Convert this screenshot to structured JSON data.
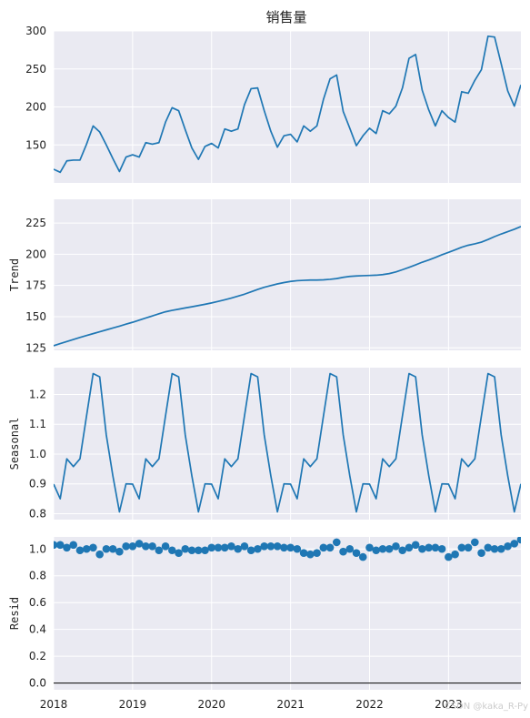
{
  "figure": {
    "watermark": "CSDN @kaka_R-Py"
  },
  "colors": {
    "line": "#1f77b4",
    "panel_bg": "#eaeaf2",
    "grid": "#ffffff",
    "baseline": "#000000"
  },
  "x_tick_labels": [
    "2018",
    "2019",
    "2020",
    "2021",
    "2022",
    "2023"
  ],
  "chart_data": [
    {
      "type": "line",
      "title": "销售量",
      "ylabel": "",
      "x_start": "2018-01",
      "frequency": "monthly",
      "ylim": [
        100,
        300
      ],
      "yticks": [
        150,
        200,
        250,
        300
      ],
      "ytick_labels": [
        "150",
        "200",
        "250",
        "300"
      ],
      "grid": true,
      "values": [
        118,
        114,
        129,
        130,
        130,
        151,
        175,
        167,
        150,
        132,
        115,
        134,
        137,
        134,
        153,
        151,
        153,
        180,
        199,
        195,
        170,
        146,
        131,
        148,
        152,
        146,
        171,
        168,
        171,
        203,
        224,
        225,
        195,
        168,
        147,
        162,
        164,
        154,
        175,
        168,
        175,
        210,
        237,
        242,
        194,
        172,
        149,
        162,
        172,
        165,
        195,
        191,
        201,
        225,
        264,
        269,
        222,
        196,
        175,
        195,
        186,
        180,
        220,
        218,
        235,
        249,
        293,
        292,
        257,
        221,
        201,
        229
      ]
    },
    {
      "type": "line",
      "title": "",
      "ylabel": "Trend",
      "x_start": "2018-01",
      "frequency": "monthly",
      "ylim": [
        123,
        244
      ],
      "yticks": [
        125,
        150,
        175,
        200,
        225
      ],
      "ytick_labels": [
        "125",
        "150",
        "175",
        "200",
        "225"
      ],
      "grid": true,
      "values": [
        126.7,
        128.4,
        130.1,
        131.7,
        133.3,
        134.9,
        136.4,
        137.9,
        139.4,
        140.9,
        142.4,
        144.0,
        145.5,
        147.2,
        148.9,
        150.6,
        152.3,
        153.9,
        155.0,
        156.0,
        157.0,
        157.9,
        158.9,
        159.9,
        161.0,
        162.2,
        163.5,
        164.9,
        166.4,
        168.0,
        169.9,
        171.8,
        173.5,
        174.9,
        176.2,
        177.3,
        178.2,
        178.8,
        179.1,
        179.3,
        179.3,
        179.5,
        179.9,
        180.5,
        181.5,
        182.2,
        182.6,
        182.8,
        183.0,
        183.2,
        183.7,
        184.5,
        185.8,
        187.6,
        189.5,
        191.5,
        193.6,
        195.4,
        197.4,
        199.6,
        201.5,
        203.5,
        205.6,
        207.2,
        208.3,
        209.7,
        211.8,
        214.1,
        216.2,
        218.1,
        220.0,
        222.2
      ]
    },
    {
      "type": "line",
      "title": "",
      "ylabel": "Seasonal",
      "x_start": "2018-01",
      "frequency": "monthly",
      "ylim": [
        0.78,
        1.29
      ],
      "yticks": [
        0.8,
        0.9,
        1.0,
        1.1,
        1.2
      ],
      "ytick_labels": [
        "0.8",
        "0.9",
        "1.0",
        "1.1",
        "1.2"
      ],
      "grid": true,
      "pattern": [
        0.899,
        0.85,
        0.984,
        0.958,
        0.984,
        1.128,
        1.27,
        1.259,
        1.064,
        0.927,
        0.806,
        0.9
      ],
      "values": [
        0.899,
        0.85,
        0.984,
        0.958,
        0.984,
        1.128,
        1.27,
        1.259,
        1.064,
        0.927,
        0.806,
        0.9,
        0.899,
        0.85,
        0.984,
        0.958,
        0.984,
        1.128,
        1.27,
        1.259,
        1.064,
        0.927,
        0.806,
        0.9,
        0.899,
        0.85,
        0.984,
        0.958,
        0.984,
        1.128,
        1.27,
        1.259,
        1.064,
        0.927,
        0.806,
        0.9,
        0.899,
        0.85,
        0.984,
        0.958,
        0.984,
        1.128,
        1.27,
        1.259,
        1.064,
        0.927,
        0.806,
        0.9,
        0.899,
        0.85,
        0.984,
        0.958,
        0.984,
        1.128,
        1.27,
        1.259,
        1.064,
        0.927,
        0.806,
        0.9,
        0.899,
        0.85,
        0.984,
        0.958,
        0.984,
        1.128,
        1.27,
        1.259,
        1.064,
        0.927,
        0.806,
        0.9
      ]
    },
    {
      "type": "scatter",
      "title": "",
      "ylabel": "Resid",
      "x_start": "2018-01",
      "frequency": "monthly",
      "ylim": [
        -0.05,
        1.09
      ],
      "yticks": [
        0.0,
        0.2,
        0.4,
        0.6,
        0.8,
        1.0
      ],
      "ytick_labels": [
        "0.0",
        "0.2",
        "0.4",
        "0.6",
        "0.8",
        "1.0"
      ],
      "grid": true,
      "baseline": 0,
      "values": [
        1.03,
        1.03,
        1.01,
        1.03,
        0.99,
        1.0,
        1.01,
        0.96,
        1.0,
        1.0,
        0.98,
        1.02,
        1.02,
        1.04,
        1.02,
        1.02,
        0.99,
        1.02,
        0.99,
        0.97,
        1.0,
        0.99,
        0.99,
        0.99,
        1.01,
        1.01,
        1.01,
        1.02,
        1.0,
        1.02,
        0.99,
        1.0,
        1.02,
        1.02,
        1.02,
        1.01,
        1.01,
        1.0,
        0.97,
        0.96,
        0.97,
        1.01,
        1.01,
        1.05,
        0.98,
        1.0,
        0.97,
        0.94,
        1.01,
        0.99,
        1.0,
        1.0,
        1.02,
        0.99,
        1.01,
        1.03,
        1.0,
        1.01,
        1.01,
        1.0,
        0.94,
        0.96,
        1.01,
        1.01,
        1.05,
        0.97,
        1.01,
        1.0,
        1.0,
        1.02,
        1.04,
        1.07
      ]
    }
  ]
}
